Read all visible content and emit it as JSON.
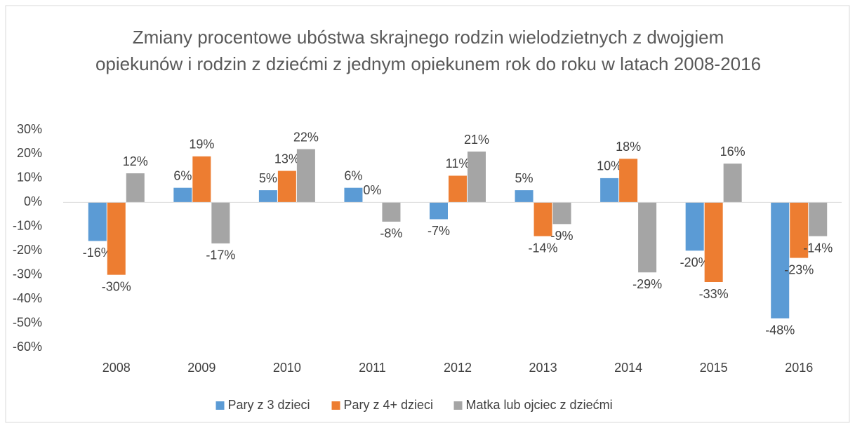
{
  "chart_data": {
    "type": "bar",
    "title": "Zmiany procentowe ubóstwa skrajnego rodzin wielodzietnych z dwojgiem opiekunów i rodzin z dziećmi z jednym opiekunem rok do roku w latach 2008-2016",
    "categories": [
      "2008",
      "2009",
      "2010",
      "2011",
      "2012",
      "2013",
      "2014",
      "2015",
      "2016"
    ],
    "series": [
      {
        "name": "Pary z 3 dzieci",
        "color": "#5b9bd5",
        "values": [
          -16,
          6,
          5,
          6,
          -7,
          5,
          10,
          -20,
          -48
        ],
        "value_labels": [
          "-16%",
          "6%",
          "5%",
          "6%",
          "-7%",
          "5%",
          "10%",
          "-20%",
          "-48%"
        ]
      },
      {
        "name": "Pary z 4+ dzieci",
        "color": "#ed7d31",
        "values": [
          -30,
          19,
          13,
          0,
          11,
          -14,
          18,
          -33,
          -23
        ],
        "value_labels": [
          "-30%",
          "19%",
          "13%",
          "0%",
          "11%",
          "-14%",
          "18%",
          "-33%",
          "-23%"
        ]
      },
      {
        "name": "Matka lub ojciec z dziećmi",
        "color": "#a5a5a5",
        "values": [
          12,
          -17,
          22,
          -8,
          21,
          -9,
          -29,
          16,
          -14
        ],
        "value_labels": [
          "12%",
          "-17%",
          "22%",
          "-8%",
          "21%",
          "-9%",
          "-29%",
          "16%",
          "-14%"
        ]
      }
    ],
    "ylim": [
      -60,
      30
    ],
    "yticks": [
      {
        "value": -60,
        "label": "-60%"
      },
      {
        "value": -50,
        "label": "-50%"
      },
      {
        "value": -40,
        "label": "-40%"
      },
      {
        "value": -30,
        "label": "-30%"
      },
      {
        "value": -20,
        "label": "-20%"
      },
      {
        "value": -10,
        "label": "-10%"
      },
      {
        "value": 0,
        "label": "0%"
      },
      {
        "value": 10,
        "label": "10%"
      },
      {
        "value": 20,
        "label": "20%"
      },
      {
        "value": 30,
        "label": "30%"
      }
    ],
    "grid": false,
    "legend": "bottom"
  }
}
